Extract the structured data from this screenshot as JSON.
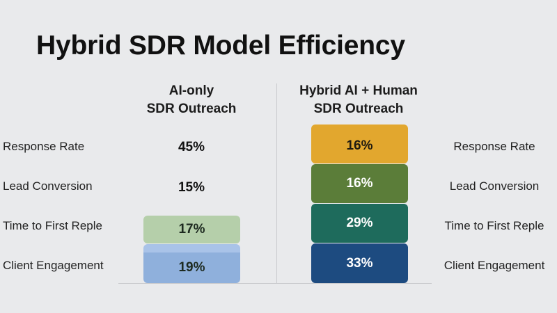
{
  "title": "Hybrid SDR Model Efficiency",
  "chart_data": {
    "type": "table",
    "title": "Hybrid SDR Model Efficiency",
    "columns": [
      {
        "name_line1": "AI-only",
        "name_line2": "SDR Outreach"
      },
      {
        "name_line1": "Hybrid AI + Human",
        "name_line2": "SDR Outreach"
      }
    ],
    "rows": [
      {
        "label": "Response Rate",
        "ai_only": "45%",
        "hybrid": "16%"
      },
      {
        "label": "Lead Conversion",
        "ai_only": "15%",
        "hybrid": "16%"
      },
      {
        "label": "Time to First Reple",
        "ai_only": "17%",
        "hybrid": "29%"
      },
      {
        "label": "Client Engagement",
        "ai_only": "19%",
        "hybrid": "33%"
      }
    ],
    "colors": {
      "ai_only_time": "#b5cfaa",
      "ai_only_engagement": "#8fb0dc",
      "ai_only_engagement_top": "#a9c3e8",
      "hybrid_response": "#e2a72e",
      "hybrid_conversion": "#5b7d39",
      "hybrid_time": "#1e6b5c",
      "hybrid_engagement": "#1d4b80"
    }
  }
}
